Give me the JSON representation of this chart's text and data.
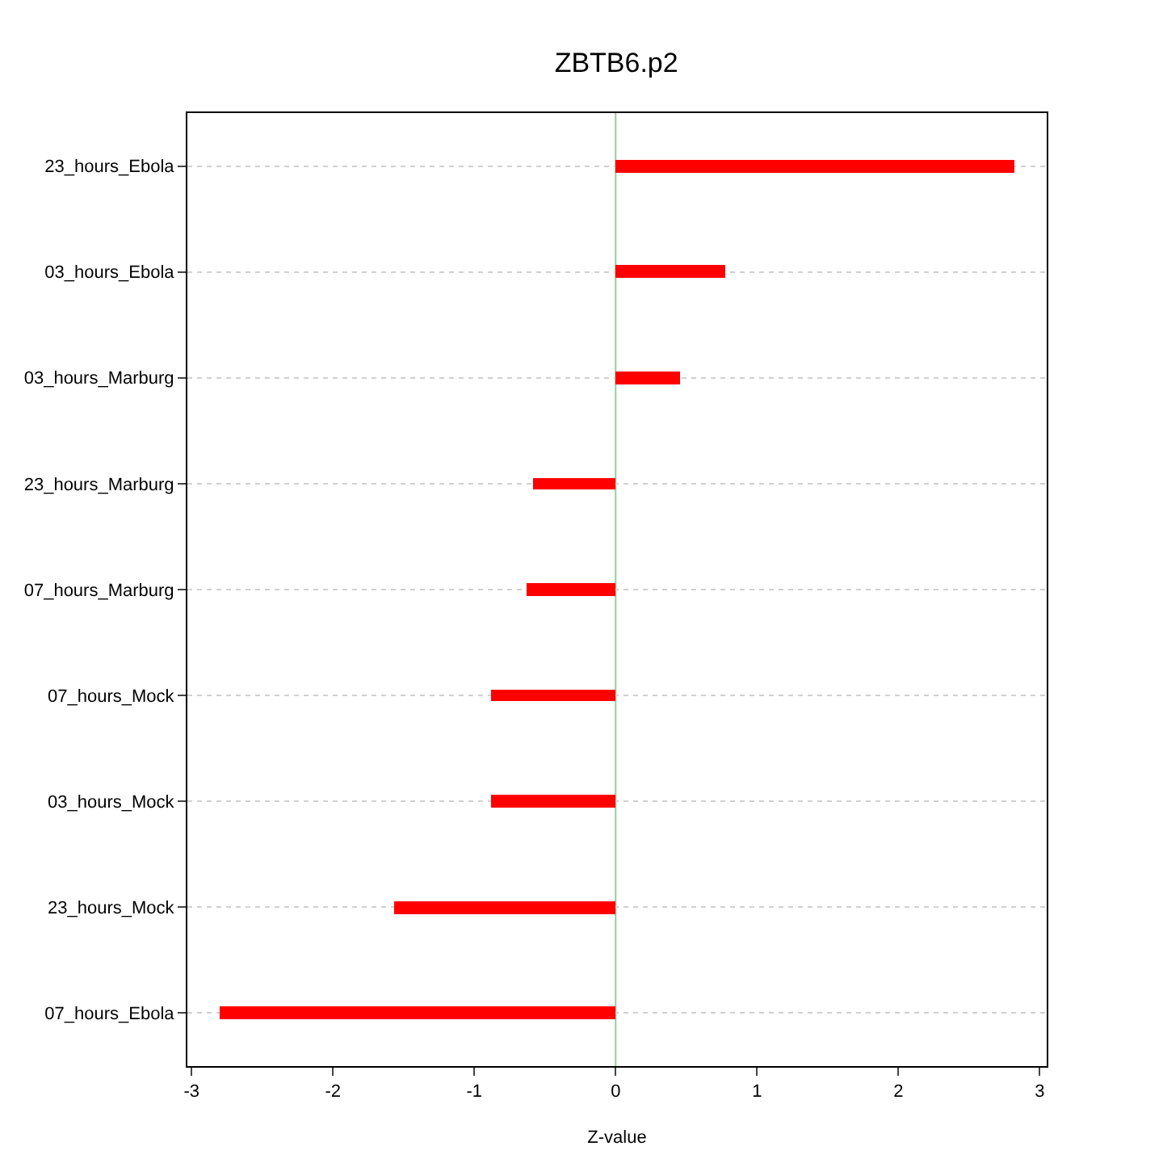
{
  "chart_data": {
    "type": "bar",
    "orientation": "horizontal",
    "title": "ZBTB6.p2",
    "xlabel": "Z-value",
    "categories": [
      "23_hours_Ebola",
      "03_hours_Ebola",
      "03_hours_Marburg",
      "23_hours_Marburg",
      "07_hours_Marburg",
      "07_hours_Mock",
      "03_hours_Mock",
      "23_hours_Mock",
      "07_hours_Ebola"
    ],
    "values": [
      2.82,
      0.78,
      0.45,
      -0.59,
      -0.63,
      -0.88,
      -0.88,
      -1.57,
      -2.8
    ],
    "color": "#ff0000",
    "xlim": [
      -3.03,
      3.05
    ],
    "xticks": [
      -3,
      -2,
      -1,
      0,
      1,
      2,
      3
    ],
    "grid": "y",
    "ref_lines": [
      {
        "axis": "x",
        "value": 0,
        "color": "#99cc99"
      }
    ]
  }
}
